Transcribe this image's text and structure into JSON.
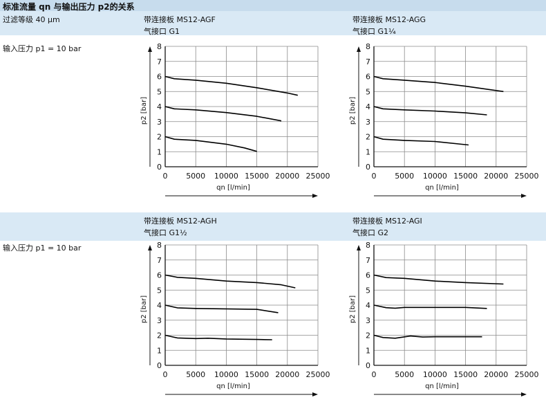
{
  "header": {
    "title": "标准流量 qn 与输出压力 p2的关系",
    "filter_grade": "过滤等级 40 µm"
  },
  "input_pressure_label": "输入压力 p1 = 10 bar",
  "panels": [
    {
      "plate": "带连接板 MS12-AGF",
      "port": "气接口 G1"
    },
    {
      "plate": "带连接板 MS12-AGG",
      "port": "气接口 G1¼"
    },
    {
      "plate": "带连接板 MS12-AGH",
      "port": "气接口 G1½"
    },
    {
      "plate": "带连接板 MS12-AGI",
      "port": "气接口 G2"
    }
  ],
  "chart_data": [
    {
      "type": "line",
      "xlabel": "qn [l/min]",
      "ylabel": "p2 [bar]",
      "xlim": [
        0,
        25000
      ],
      "ylim": [
        0,
        8
      ],
      "xticks": [
        0,
        5000,
        10000,
        15000,
        20000,
        25000
      ],
      "yticks": [
        0,
        1,
        2,
        3,
        4,
        5,
        6,
        7,
        8
      ],
      "grid": true,
      "series": [
        {
          "values": [
            [
              0,
              6.0
            ],
            [
              1500,
              5.85
            ],
            [
              5000,
              5.75
            ],
            [
              10000,
              5.55
            ],
            [
              15000,
              5.25
            ],
            [
              20000,
              4.9
            ],
            [
              21700,
              4.75
            ]
          ]
        },
        {
          "values": [
            [
              0,
              4.0
            ],
            [
              1500,
              3.85
            ],
            [
              5000,
              3.78
            ],
            [
              10000,
              3.6
            ],
            [
              15000,
              3.35
            ],
            [
              19000,
              3.05
            ]
          ]
        },
        {
          "values": [
            [
              0,
              2.0
            ],
            [
              1500,
              1.83
            ],
            [
              5000,
              1.75
            ],
            [
              10000,
              1.5
            ],
            [
              13000,
              1.25
            ],
            [
              15000,
              1.02
            ]
          ]
        }
      ]
    },
    {
      "type": "line",
      "xlabel": "qn [l/min]",
      "ylabel": "p2 [bar]",
      "xlim": [
        0,
        25000
      ],
      "ylim": [
        0,
        8
      ],
      "xticks": [
        0,
        5000,
        10000,
        15000,
        20000,
        25000
      ],
      "yticks": [
        0,
        1,
        2,
        3,
        4,
        5,
        6,
        7,
        8
      ],
      "grid": true,
      "series": [
        {
          "values": [
            [
              0,
              6.0
            ],
            [
              1500,
              5.85
            ],
            [
              5000,
              5.75
            ],
            [
              10000,
              5.6
            ],
            [
              15000,
              5.35
            ],
            [
              21200,
              5.0
            ]
          ]
        },
        {
          "values": [
            [
              0,
              4.0
            ],
            [
              1500,
              3.85
            ],
            [
              5000,
              3.78
            ],
            [
              10000,
              3.7
            ],
            [
              15000,
              3.58
            ],
            [
              18500,
              3.45
            ]
          ]
        },
        {
          "values": [
            [
              0,
              2.0
            ],
            [
              1500,
              1.83
            ],
            [
              5000,
              1.75
            ],
            [
              10000,
              1.68
            ],
            [
              15500,
              1.45
            ]
          ]
        }
      ]
    },
    {
      "type": "line",
      "xlabel": "qn [l/min]",
      "ylabel": "p2 [bar]",
      "xlim": [
        0,
        25000
      ],
      "ylim": [
        0,
        8
      ],
      "xticks": [
        0,
        5000,
        10000,
        15000,
        20000,
        25000
      ],
      "yticks": [
        0,
        1,
        2,
        3,
        4,
        5,
        6,
        7,
        8
      ],
      "grid": true,
      "series": [
        {
          "values": [
            [
              0,
              6.0
            ],
            [
              2000,
              5.85
            ],
            [
              5000,
              5.78
            ],
            [
              10000,
              5.6
            ],
            [
              15000,
              5.5
            ],
            [
              19000,
              5.35
            ],
            [
              21300,
              5.15
            ]
          ]
        },
        {
          "values": [
            [
              0,
              4.0
            ],
            [
              2000,
              3.82
            ],
            [
              5000,
              3.78
            ],
            [
              10000,
              3.75
            ],
            [
              15000,
              3.72
            ],
            [
              18500,
              3.5
            ]
          ]
        },
        {
          "values": [
            [
              0,
              2.0
            ],
            [
              2000,
              1.82
            ],
            [
              5000,
              1.78
            ],
            [
              7000,
              1.8
            ],
            [
              10000,
              1.75
            ],
            [
              15000,
              1.72
            ],
            [
              17500,
              1.7
            ]
          ]
        }
      ]
    },
    {
      "type": "line",
      "xlabel": "qn [l/min]",
      "ylabel": "p2 [bar]",
      "xlim": [
        0,
        25000
      ],
      "ylim": [
        0,
        8
      ],
      "xticks": [
        0,
        5000,
        10000,
        15000,
        20000,
        25000
      ],
      "yticks": [
        0,
        1,
        2,
        3,
        4,
        5,
        6,
        7,
        8
      ],
      "grid": true,
      "series": [
        {
          "values": [
            [
              0,
              6.0
            ],
            [
              2000,
              5.83
            ],
            [
              5000,
              5.78
            ],
            [
              10000,
              5.6
            ],
            [
              15000,
              5.5
            ],
            [
              21200,
              5.4
            ]
          ]
        },
        {
          "values": [
            [
              0,
              4.0
            ],
            [
              2000,
              3.83
            ],
            [
              3500,
              3.8
            ],
            [
              5000,
              3.85
            ],
            [
              10000,
              3.85
            ],
            [
              15000,
              3.85
            ],
            [
              18500,
              3.78
            ]
          ]
        },
        {
          "values": [
            [
              0,
              2.0
            ],
            [
              1500,
              1.85
            ],
            [
              3500,
              1.8
            ],
            [
              6000,
              1.95
            ],
            [
              8000,
              1.88
            ],
            [
              10000,
              1.9
            ],
            [
              15000,
              1.9
            ],
            [
              17700,
              1.9
            ]
          ]
        }
      ]
    }
  ]
}
